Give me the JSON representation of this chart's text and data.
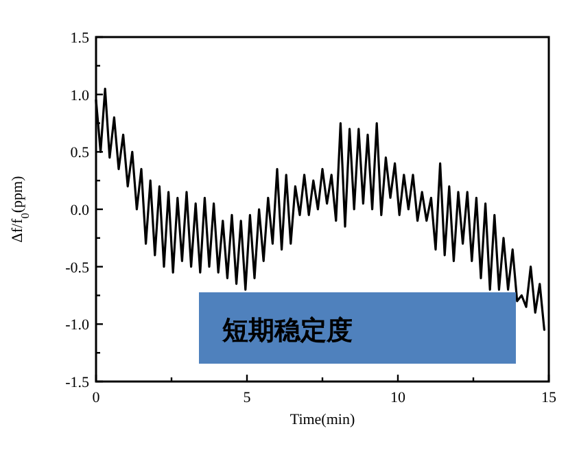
{
  "chart_data": {
    "type": "line",
    "xlabel": "Time(min)",
    "ylabel": "Δf/f$_{0}$(ppm)",
    "annotations": [
      "短期稳定度"
    ],
    "xlim": [
      0,
      15
    ],
    "ylim": [
      -1.5,
      1.5
    ],
    "xticks": [
      0,
      {
        "value": 2.5,
        "label": null
      },
      5,
      {
        "value": 7.5,
        "label": null
      },
      10,
      {
        "value": 12.5,
        "label": null
      },
      15
    ],
    "yticks": [
      -1.5,
      {
        "value": -1.25,
        "label": null
      },
      {
        "value": -1,
        "label": "-1.0"
      },
      {
        "value": -0.75,
        "label": null
      },
      -0.5,
      {
        "value": -0.25,
        "label": null
      },
      {
        "value": 0,
        "label": "0.0"
      },
      {
        "value": 0.25,
        "label": null
      },
      0.5,
      {
        "value": 0.75,
        "label": null
      },
      {
        "value": 1,
        "label": "1.0"
      },
      {
        "value": 1.25,
        "label": null
      },
      1.5
    ],
    "series": [
      {
        "color": "#000000",
        "x": [
          0,
          0.15,
          0.3,
          0.45,
          0.6,
          0.75,
          0.9,
          1.05,
          1.2,
          1.35,
          1.5,
          1.65,
          1.8,
          1.95,
          2.1,
          2.25,
          2.4,
          2.55,
          2.7,
          2.85,
          3.0,
          3.15,
          3.3,
          3.45,
          3.6,
          3.75,
          3.9,
          4.05,
          4.2,
          4.35,
          4.5,
          4.65,
          4.8,
          4.95,
          5.1,
          5.25,
          5.4,
          5.55,
          5.7,
          5.85,
          6.0,
          6.15,
          6.3,
          6.45,
          6.6,
          6.75,
          6.9,
          7.05,
          7.2,
          7.35,
          7.5,
          7.65,
          7.8,
          7.95,
          8.1,
          8.25,
          8.4,
          8.55,
          8.7,
          8.85,
          9.0,
          9.15,
          9.3,
          9.45,
          9.6,
          9.75,
          9.9,
          10.05,
          10.2,
          10.35,
          10.5,
          10.65,
          10.8,
          10.95,
          11.1,
          11.25,
          11.4,
          11.55,
          11.7,
          11.85,
          12.0,
          12.15,
          12.3,
          12.45,
          12.6,
          12.75,
          12.9,
          13.05,
          13.2,
          13.35,
          13.5,
          13.65,
          13.8,
          13.95,
          14.1,
          14.25,
          14.4,
          14.55,
          14.7,
          14.85
        ],
        "values": [
          0.95,
          0.5,
          1.05,
          0.45,
          0.8,
          0.35,
          0.65,
          0.2,
          0.5,
          0.0,
          0.35,
          -0.3,
          0.25,
          -0.4,
          0.2,
          -0.5,
          0.15,
          -0.55,
          0.1,
          -0.45,
          0.15,
          -0.5,
          0.05,
          -0.55,
          0.1,
          -0.5,
          0.05,
          -0.55,
          -0.1,
          -0.6,
          -0.05,
          -0.65,
          -0.1,
          -0.7,
          -0.05,
          -0.6,
          0.0,
          -0.45,
          0.1,
          -0.3,
          0.35,
          -0.35,
          0.3,
          -0.3,
          0.2,
          -0.05,
          0.3,
          -0.05,
          0.25,
          0.0,
          0.35,
          0.05,
          0.3,
          -0.1,
          0.75,
          -0.15,
          0.7,
          0.0,
          0.7,
          0.05,
          0.65,
          0.0,
          0.75,
          -0.05,
          0.45,
          0.1,
          0.4,
          -0.05,
          0.3,
          0.0,
          0.3,
          -0.1,
          0.15,
          -0.1,
          0.1,
          -0.35,
          0.4,
          -0.4,
          0.2,
          -0.45,
          0.15,
          -0.3,
          0.15,
          -0.45,
          0.1,
          -0.6,
          0.05,
          -0.7,
          -0.05,
          -0.7,
          -0.25,
          -0.7,
          -0.35,
          -0.8,
          -0.75,
          -0.85,
          -0.5,
          -0.9,
          -0.65,
          -1.05
        ]
      }
    ]
  }
}
